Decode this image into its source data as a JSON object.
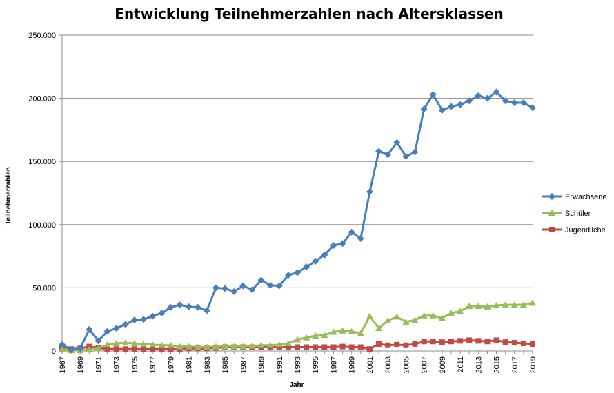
{
  "chart_data": {
    "type": "line",
    "title": "Entwicklung Teilnehmerzahlen nach Altersklassen",
    "xlabel": "Jahr",
    "ylabel": "Teilnehmerzahlen",
    "ylim": [
      0,
      250000
    ],
    "y_ticks": [
      "0",
      "50.000",
      "100.000",
      "150.000",
      "200.000",
      "250.000"
    ],
    "y_tick_values": [
      0,
      50000,
      100000,
      150000,
      200000,
      250000
    ],
    "x_tick_labels": [
      "1967",
      "1969",
      "1971",
      "1973",
      "1975",
      "1977",
      "1979",
      "1981",
      "1983",
      "1985",
      "1987",
      "1989",
      "1991",
      "1993",
      "1995",
      "1997",
      "1999",
      "2001",
      "2003",
      "2005",
      "2007",
      "2009",
      "2011",
      "2013",
      "2015",
      "2017",
      "2019"
    ],
    "grid": true,
    "legend_position": "right",
    "x": [
      1967,
      1968,
      1969,
      1970,
      1971,
      1972,
      1973,
      1974,
      1975,
      1976,
      1977,
      1978,
      1979,
      1980,
      1981,
      1982,
      1983,
      1984,
      1985,
      1986,
      1987,
      1988,
      1989,
      1990,
      1991,
      1992,
      1993,
      1994,
      1995,
      1996,
      1997,
      1998,
      1999,
      2000,
      2001,
      2002,
      2003,
      2004,
      2005,
      2006,
      2007,
      2008,
      2009,
      2010,
      2011,
      2012,
      2013,
      2014,
      2015,
      2016,
      2017,
      2018,
      2019
    ],
    "series": [
      {
        "name": "Erwachsene",
        "color": "#4a7ebb",
        "marker": "diamond",
        "values": [
          5000,
          1000,
          2000,
          17000,
          8000,
          15500,
          18000,
          21000,
          24500,
          25000,
          27500,
          30000,
          34500,
          36500,
          35000,
          34500,
          32000,
          50000,
          49500,
          47000,
          51500,
          48500,
          56000,
          52000,
          51500,
          60000,
          62000,
          66500,
          71000,
          76000,
          83500,
          85000,
          94000,
          89000,
          126000,
          158000,
          155500,
          165000,
          154000,
          157500,
          191500,
          203000,
          190500,
          193500,
          195000,
          198000,
          202000,
          200000,
          205000,
          198000,
          196500,
          196500,
          192500
        ]
      },
      {
        "name": "Schüler",
        "color": "#9bbb59",
        "marker": "triangle",
        "values": [
          1500,
          500,
          500,
          1000,
          2000,
          5000,
          6000,
          6500,
          6000,
          5500,
          5000,
          4500,
          4500,
          3500,
          3500,
          3000,
          3000,
          3500,
          3500,
          3500,
          3500,
          4000,
          4500,
          4500,
          5000,
          6000,
          9000,
          10500,
          12000,
          12500,
          15000,
          16000,
          15500,
          14000,
          27500,
          18000,
          24000,
          27000,
          23000,
          24500,
          28000,
          28000,
          26000,
          30000,
          31500,
          35500,
          35500,
          35000,
          36000,
          36500,
          36500,
          36500,
          38000
        ]
      },
      {
        "name": "Jugendliche",
        "color": "#be4b48",
        "marker": "square",
        "values": [
          2500,
          1500,
          2000,
          3500,
          2500,
          1500,
          1500,
          1500,
          1500,
          1500,
          1500,
          1500,
          1500,
          1500,
          2000,
          2000,
          2000,
          2500,
          3000,
          3000,
          3000,
          3000,
          3000,
          3000,
          3000,
          3000,
          3000,
          3000,
          3000,
          3000,
          3000,
          3500,
          3000,
          3000,
          1500,
          5500,
          4500,
          5000,
          4500,
          5500,
          7500,
          7500,
          7000,
          7500,
          8000,
          8500,
          8000,
          7500,
          8500,
          7000,
          6500,
          6000,
          5500
        ]
      }
    ]
  }
}
